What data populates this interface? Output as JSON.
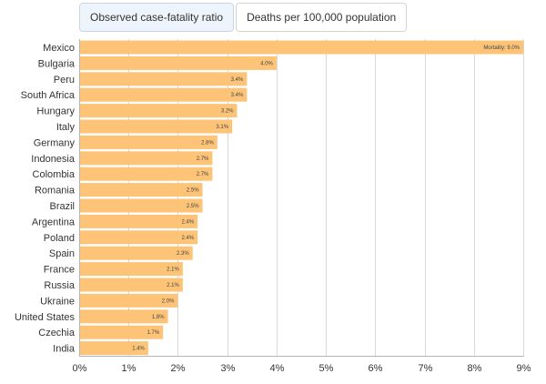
{
  "tabs": [
    {
      "label": "Observed case-fatality ratio",
      "active": true
    },
    {
      "label": "Deaths per 100,000 population",
      "active": false
    }
  ],
  "chart_data": {
    "type": "bar",
    "orientation": "horizontal",
    "categories": [
      "Mexico",
      "Bulgaria",
      "Peru",
      "South Africa",
      "Hungary",
      "Italy",
      "Germany",
      "Indonesia",
      "Colombia",
      "Romania",
      "Brazil",
      "Argentina",
      "Poland",
      "Spain",
      "France",
      "Russia",
      "Ukraine",
      "United States",
      "Czechia",
      "India"
    ],
    "values": [
      9.0,
      4.0,
      3.4,
      3.4,
      3.2,
      3.1,
      2.8,
      2.7,
      2.7,
      2.5,
      2.5,
      2.4,
      2.4,
      2.3,
      2.1,
      2.1,
      2.0,
      1.8,
      1.7,
      1.4
    ],
    "bar_labels": [
      "Mortality: 9.0%",
      "4.0%",
      "3.4%",
      "3.4%",
      "3.2%",
      "3.1%",
      "2.8%",
      "2.7%",
      "2.7%",
      "2.5%",
      "2.5%",
      "2.4%",
      "2.4%",
      "2.3%",
      "2.1%",
      "2.1%",
      "2.0%",
      "1.8%",
      "1.7%",
      "1.4%"
    ],
    "x_ticks": [
      "0%",
      "1%",
      "2%",
      "3%",
      "4%",
      "5%",
      "6%",
      "7%",
      "8%",
      "9%"
    ],
    "xlim": [
      0,
      9
    ],
    "grid": true,
    "bar_color": "#fdc478"
  }
}
